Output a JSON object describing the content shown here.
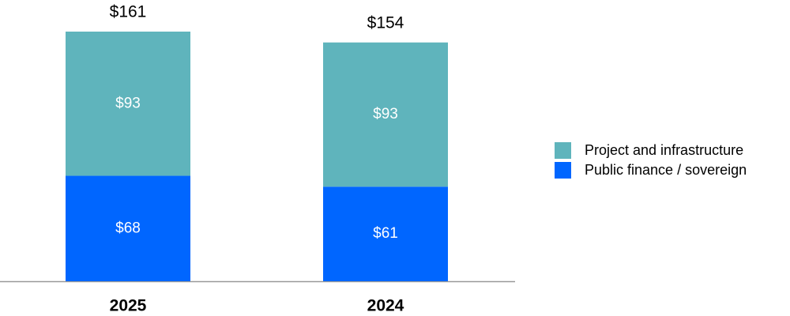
{
  "chart_data": {
    "type": "stacked_bar",
    "categories": [
      "2025",
      "2024"
    ],
    "series": [
      {
        "name": "Public finance / sovereign",
        "color": "#0066ff",
        "values": [
          68,
          61
        ],
        "value_labels": [
          "$68",
          "$61"
        ]
      },
      {
        "name": "Project and infrastructure",
        "color": "#5fb4bc",
        "values": [
          93,
          93
        ],
        "value_labels": [
          "$93",
          "$93"
        ]
      }
    ],
    "totals": [
      161,
      154
    ],
    "total_labels": [
      "$161",
      "$154"
    ],
    "legend": "right"
  }
}
